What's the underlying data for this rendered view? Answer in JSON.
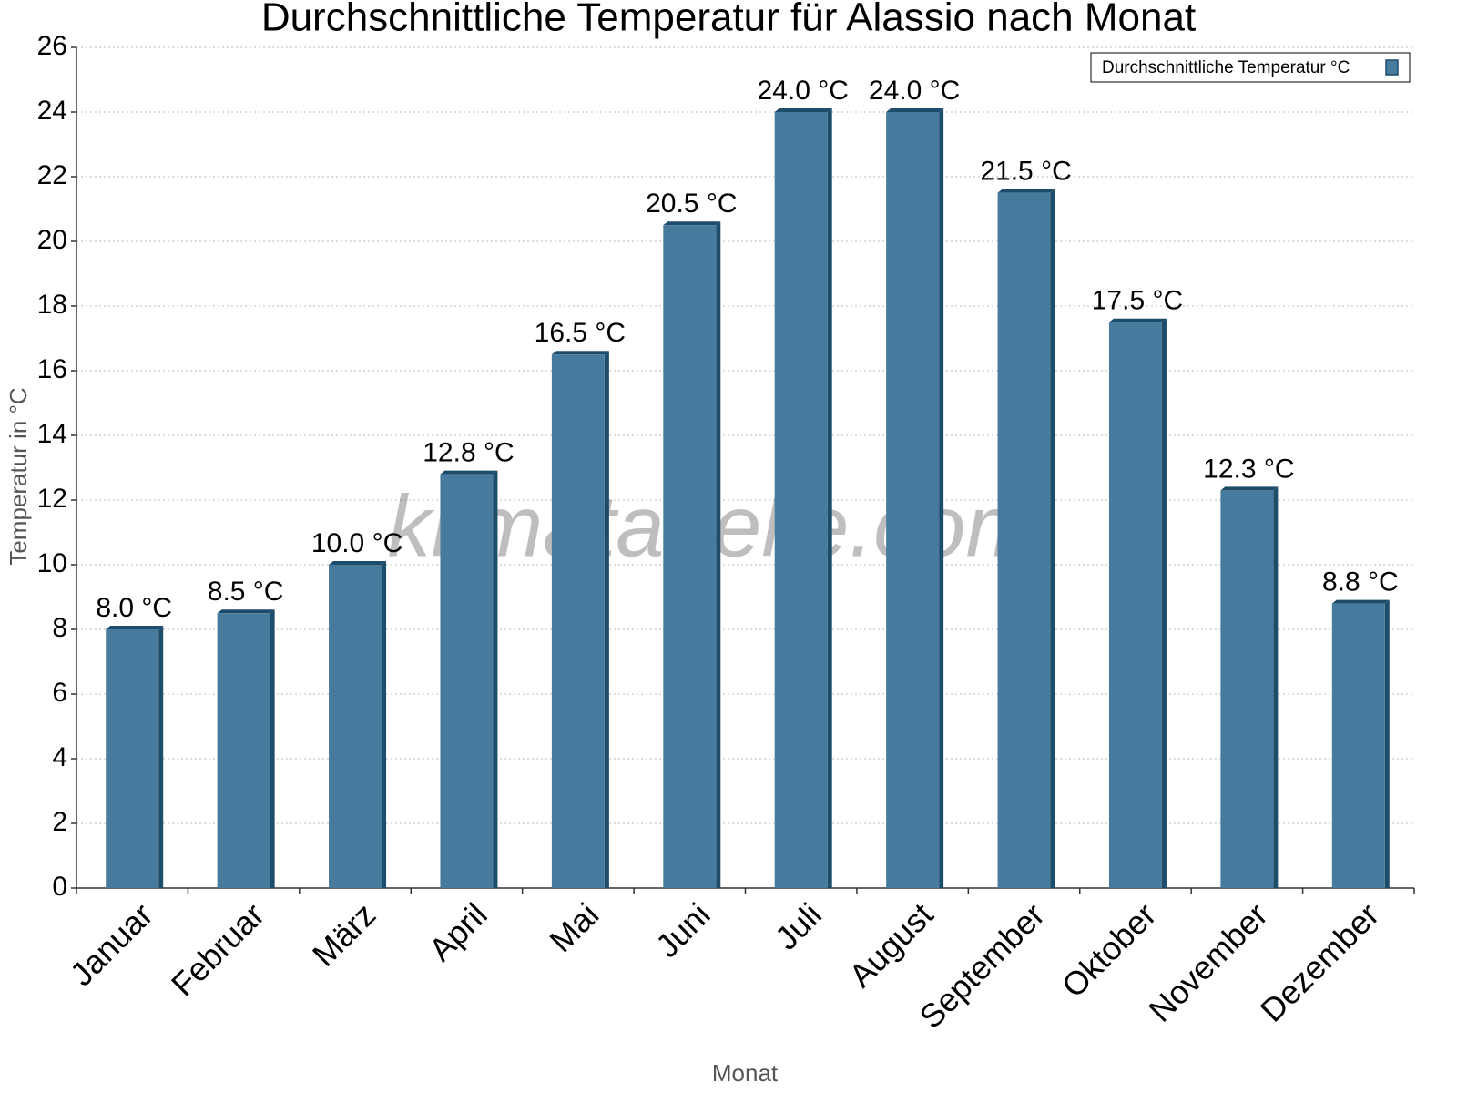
{
  "chart_data": {
    "type": "bar",
    "title": "Durchschnittliche Temperatur für Alassio nach Monat",
    "watermark": "klimatabelle.com",
    "x_label": "Monat",
    "y_label": "Temperatur in °C",
    "categories": [
      "Januar",
      "Februar",
      "März",
      "April",
      "Mai",
      "Juni",
      "Juli",
      "August",
      "September",
      "Oktober",
      "November",
      "Dezember"
    ],
    "series": [
      {
        "name": "Durchschnittliche Temperatur °C",
        "color": "#467b9d",
        "values": [
          8.0,
          8.5,
          10.0,
          12.8,
          16.5,
          20.5,
          24.0,
          24.0,
          21.5,
          17.5,
          12.3,
          8.8
        ],
        "value_labels": [
          "8.0 °C",
          "8.5 °C",
          "10.0 °C",
          "12.8 °C",
          "16.5 °C",
          "20.5 °C",
          "24.0 °C",
          "24.0 °C",
          "21.5 °C",
          "17.5 °C",
          "12.3 °C",
          "8.8 °C"
        ]
      }
    ],
    "ylim": [
      0,
      26
    ],
    "yticks": [
      0,
      2,
      4,
      6,
      8,
      10,
      12,
      14,
      16,
      18,
      20,
      22,
      24,
      26
    ],
    "grid": true,
    "legend": "top-right"
  }
}
